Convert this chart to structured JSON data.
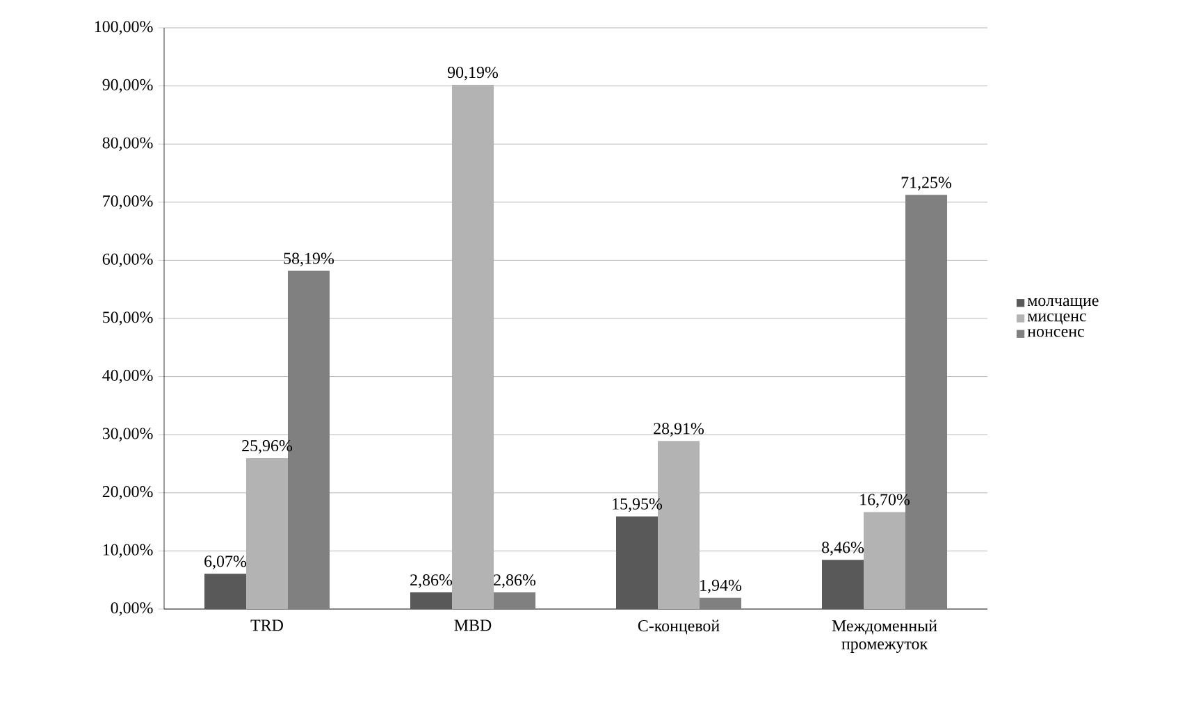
{
  "chart_data": {
    "type": "bar",
    "categories": [
      "TRD",
      "MBD",
      "С-концевой",
      "Междоменный промежуток"
    ],
    "series": [
      {
        "name": "молчащие",
        "color": "#595959",
        "values": [
          6.07,
          2.86,
          15.95,
          8.46
        ],
        "value_labels": [
          "6,07%",
          "2,86%",
          "15,95%",
          "8,46%"
        ]
      },
      {
        "name": "мисценс",
        "color": "#b3b3b3",
        "values": [
          25.96,
          90.19,
          28.91,
          16.7
        ],
        "value_labels": [
          "25,96%",
          "90,19%",
          "28,91%",
          "16,70%"
        ]
      },
      {
        "name": "нонсенс",
        "color": "#808080",
        "values": [
          58.19,
          2.86,
          1.94,
          71.25
        ],
        "value_labels": [
          "58,19%",
          "2,86%",
          "1,94%",
          "71,25%"
        ]
      }
    ],
    "ylim": [
      0,
      100
    ],
    "yticks": [
      {
        "value": 0,
        "label": "0,00%"
      },
      {
        "value": 10,
        "label": "10,00%"
      },
      {
        "value": 20,
        "label": "20,00%"
      },
      {
        "value": 30,
        "label": "30,00%"
      },
      {
        "value": 40,
        "label": "40,00%"
      },
      {
        "value": 50,
        "label": "50,00%"
      },
      {
        "value": 60,
        "label": "60,00%"
      },
      {
        "value": 70,
        "label": "70,00%"
      },
      {
        "value": 80,
        "label": "80,00%"
      },
      {
        "value": 90,
        "label": "90,00%"
      },
      {
        "value": 100,
        "label": "100,00%"
      }
    ],
    "grid": "y",
    "legend": "right"
  }
}
